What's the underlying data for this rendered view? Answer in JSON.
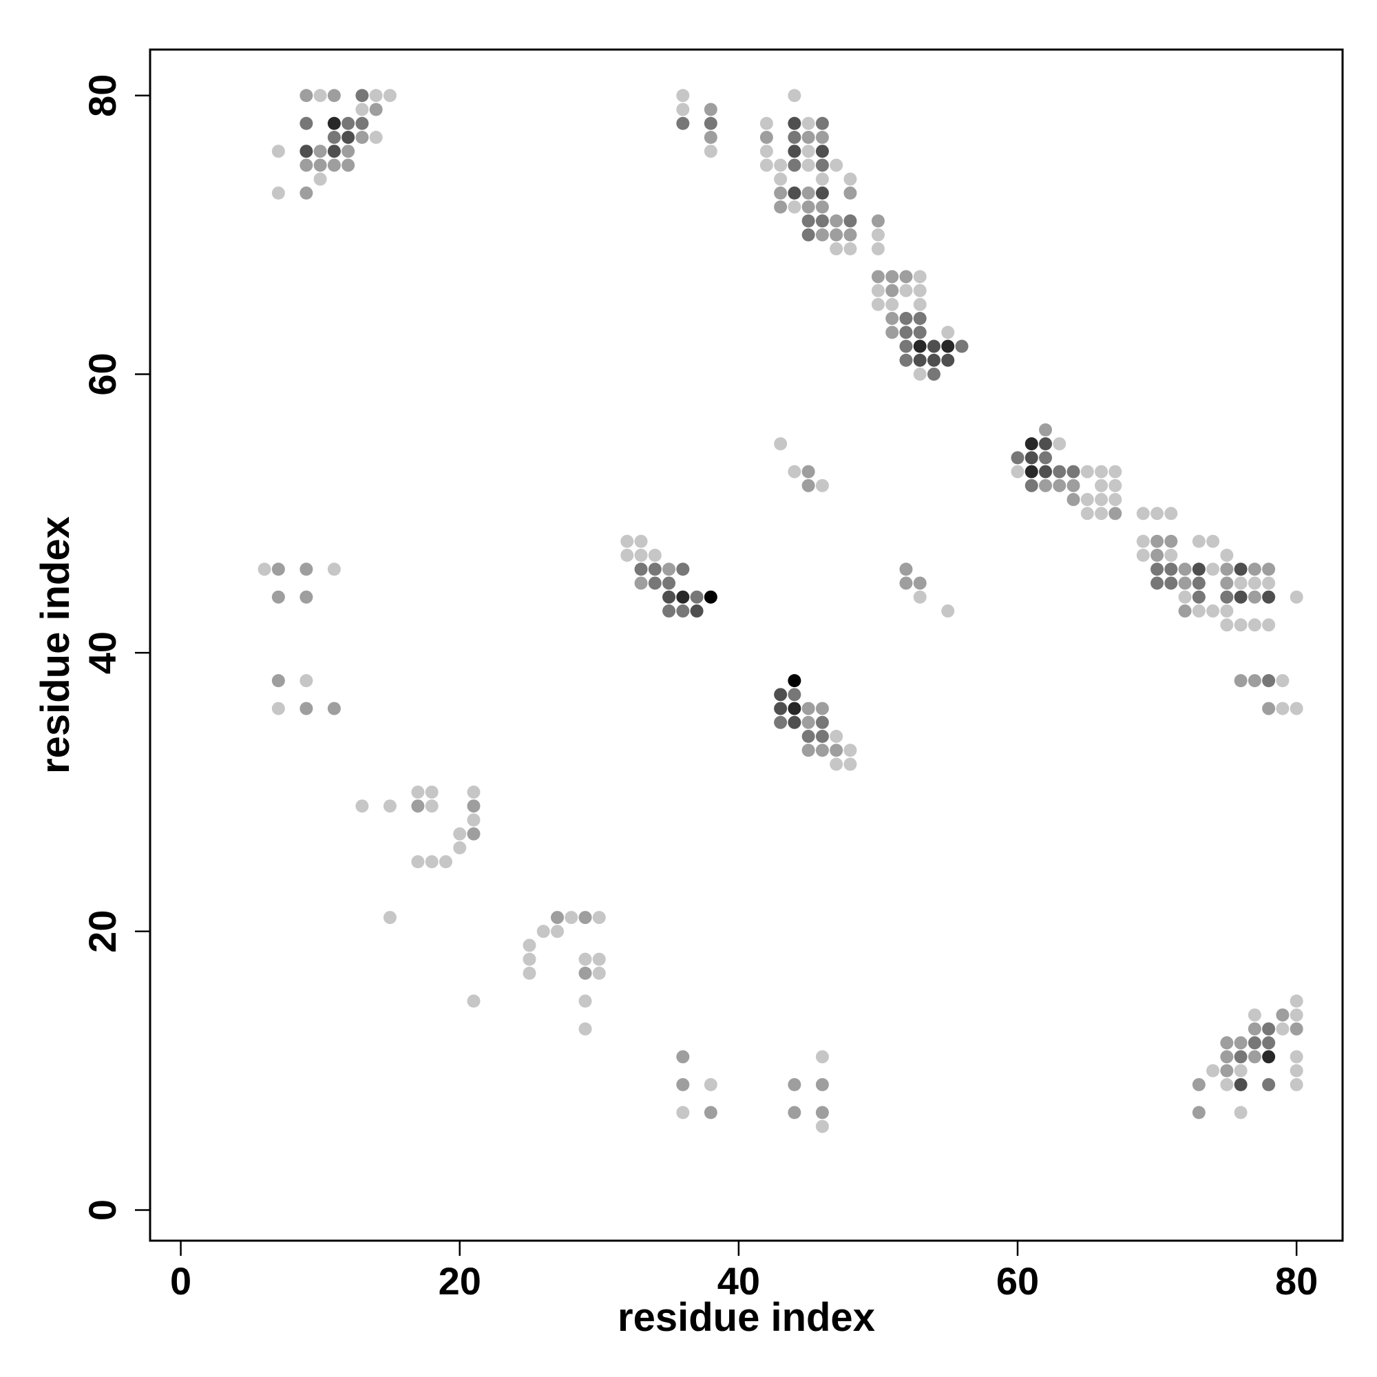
{
  "chart_data": {
    "type": "scatter",
    "title": "",
    "xlabel": "residue index",
    "ylabel": "residue index",
    "xlim": [
      -2.2,
      83.3
    ],
    "ylim": [
      -2.2,
      83.3
    ],
    "xticks": [
      0,
      20,
      40,
      60,
      80
    ],
    "yticks": [
      0,
      20,
      40,
      60,
      80
    ],
    "grid": false,
    "legend": "none",
    "marker_color_scale": [
      "#c6c6c6",
      "#000000"
    ],
    "points": [
      [
        7,
        76,
        1
      ],
      [
        7,
        73,
        1
      ],
      [
        9,
        80,
        2
      ],
      [
        9,
        78,
        3
      ],
      [
        9,
        76,
        4
      ],
      [
        9,
        75,
        2
      ],
      [
        9,
        73,
        2
      ],
      [
        10,
        80,
        1
      ],
      [
        10,
        76,
        2
      ],
      [
        10,
        75,
        2
      ],
      [
        10,
        74,
        1
      ],
      [
        11,
        80,
        2
      ],
      [
        11,
        78,
        5
      ],
      [
        11,
        77,
        3
      ],
      [
        11,
        76,
        4
      ],
      [
        11,
        75,
        2
      ],
      [
        12,
        78,
        3
      ],
      [
        12,
        77,
        4
      ],
      [
        12,
        76,
        2
      ],
      [
        12,
        75,
        2
      ],
      [
        13,
        80,
        3
      ],
      [
        13,
        79,
        1
      ],
      [
        13,
        78,
        3
      ],
      [
        13,
        77,
        2
      ],
      [
        14,
        80,
        1
      ],
      [
        14,
        79,
        2
      ],
      [
        14,
        77,
        1
      ],
      [
        15,
        80,
        1
      ],
      [
        36,
        80,
        1
      ],
      [
        36,
        79,
        1
      ],
      [
        36,
        78,
        3
      ],
      [
        38,
        79,
        2
      ],
      [
        38,
        78,
        3
      ],
      [
        38,
        77,
        2
      ],
      [
        38,
        76,
        1
      ],
      [
        44,
        80,
        1
      ],
      [
        42,
        78,
        1
      ],
      [
        42,
        77,
        2
      ],
      [
        42,
        76,
        1
      ],
      [
        42,
        75,
        1
      ],
      [
        43,
        75,
        1
      ],
      [
        43,
        74,
        1
      ],
      [
        43,
        73,
        2
      ],
      [
        43,
        72,
        2
      ],
      [
        44,
        78,
        4
      ],
      [
        44,
        77,
        3
      ],
      [
        44,
        76,
        4
      ],
      [
        44,
        75,
        3
      ],
      [
        44,
        73,
        4
      ],
      [
        44,
        72,
        1
      ],
      [
        45,
        78,
        1
      ],
      [
        45,
        77,
        2
      ],
      [
        45,
        76,
        1
      ],
      [
        45,
        75,
        1
      ],
      [
        45,
        73,
        2
      ],
      [
        45,
        72,
        2
      ],
      [
        45,
        71,
        3
      ],
      [
        45,
        70,
        3
      ],
      [
        46,
        78,
        3
      ],
      [
        46,
        77,
        2
      ],
      [
        46,
        76,
        4
      ],
      [
        46,
        75,
        3
      ],
      [
        46,
        74,
        1
      ],
      [
        46,
        73,
        4
      ],
      [
        46,
        72,
        2
      ],
      [
        46,
        71,
        3
      ],
      [
        46,
        70,
        2
      ],
      [
        47,
        75,
        1
      ],
      [
        47,
        71,
        2
      ],
      [
        47,
        70,
        2
      ],
      [
        47,
        69,
        1
      ],
      [
        48,
        74,
        1
      ],
      [
        48,
        73,
        2
      ],
      [
        48,
        71,
        3
      ],
      [
        48,
        70,
        2
      ],
      [
        48,
        69,
        1
      ],
      [
        50,
        71,
        2
      ],
      [
        50,
        70,
        1
      ],
      [
        50,
        69,
        1
      ],
      [
        50,
        67,
        2
      ],
      [
        50,
        66,
        1
      ],
      [
        50,
        65,
        1
      ],
      [
        51,
        67,
        2
      ],
      [
        51,
        66,
        2
      ],
      [
        51,
        65,
        1
      ],
      [
        51,
        64,
        2
      ],
      [
        51,
        63,
        2
      ],
      [
        52,
        67,
        2
      ],
      [
        52,
        66,
        1
      ],
      [
        52,
        64,
        3
      ],
      [
        52,
        63,
        3
      ],
      [
        52,
        62,
        3
      ],
      [
        52,
        61,
        3
      ],
      [
        53,
        67,
        1
      ],
      [
        53,
        66,
        1
      ],
      [
        53,
        65,
        1
      ],
      [
        53,
        64,
        3
      ],
      [
        53,
        63,
        3
      ],
      [
        53,
        62,
        5
      ],
      [
        53,
        61,
        4
      ],
      [
        53,
        60,
        1
      ],
      [
        54,
        62,
        4
      ],
      [
        54,
        61,
        4
      ],
      [
        54,
        60,
        3
      ],
      [
        55,
        63,
        1
      ],
      [
        55,
        62,
        5
      ],
      [
        55,
        61,
        4
      ],
      [
        56,
        62,
        3
      ],
      [
        43,
        55,
        1
      ],
      [
        44,
        53,
        1
      ],
      [
        45,
        53,
        2
      ],
      [
        45,
        52,
        2
      ],
      [
        46,
        52,
        1
      ],
      [
        60,
        54,
        3
      ],
      [
        60,
        53,
        1
      ],
      [
        61,
        55,
        5
      ],
      [
        61,
        54,
        4
      ],
      [
        61,
        53,
        5
      ],
      [
        61,
        52,
        3
      ],
      [
        62,
        56,
        2
      ],
      [
        62,
        55,
        4
      ],
      [
        62,
        54,
        3
      ],
      [
        62,
        53,
        4
      ],
      [
        62,
        52,
        2
      ],
      [
        63,
        55,
        1
      ],
      [
        63,
        53,
        3
      ],
      [
        63,
        52,
        2
      ],
      [
        64,
        53,
        3
      ],
      [
        64,
        52,
        2
      ],
      [
        64,
        51,
        2
      ],
      [
        65,
        53,
        1
      ],
      [
        65,
        51,
        1
      ],
      [
        65,
        50,
        1
      ],
      [
        66,
        53,
        1
      ],
      [
        66,
        52,
        1
      ],
      [
        66,
        51,
        1
      ],
      [
        66,
        50,
        1
      ],
      [
        67,
        53,
        1
      ],
      [
        67,
        52,
        1
      ],
      [
        67,
        51,
        1
      ],
      [
        67,
        50,
        2
      ],
      [
        69,
        50,
        1
      ],
      [
        70,
        50,
        1
      ],
      [
        71,
        50,
        1
      ],
      [
        69,
        48,
        1
      ],
      [
        69,
        47,
        1
      ],
      [
        70,
        48,
        2
      ],
      [
        70,
        47,
        2
      ],
      [
        70,
        46,
        3
      ],
      [
        70,
        45,
        3
      ],
      [
        71,
        48,
        2
      ],
      [
        71,
        47,
        1
      ],
      [
        71,
        46,
        3
      ],
      [
        71,
        45,
        3
      ],
      [
        72,
        46,
        2
      ],
      [
        72,
        45,
        2
      ],
      [
        72,
        44,
        1
      ],
      [
        72,
        43,
        2
      ],
      [
        73,
        48,
        1
      ],
      [
        73,
        46,
        4
      ],
      [
        73,
        45,
        3
      ],
      [
        73,
        44,
        3
      ],
      [
        73,
        43,
        1
      ],
      [
        74,
        48,
        1
      ],
      [
        74,
        46,
        1
      ],
      [
        74,
        43,
        1
      ],
      [
        75,
        47,
        1
      ],
      [
        75,
        46,
        2
      ],
      [
        75,
        45,
        2
      ],
      [
        75,
        44,
        3
      ],
      [
        75,
        43,
        1
      ],
      [
        75,
        42,
        1
      ],
      [
        76,
        46,
        4
      ],
      [
        76,
        45,
        1
      ],
      [
        76,
        44,
        4
      ],
      [
        76,
        42,
        1
      ],
      [
        77,
        46,
        2
      ],
      [
        77,
        45,
        1
      ],
      [
        77,
        44,
        2
      ],
      [
        77,
        42,
        1
      ],
      [
        78,
        46,
        2
      ],
      [
        78,
        45,
        1
      ],
      [
        78,
        44,
        4
      ],
      [
        78,
        42,
        1
      ],
      [
        80,
        44,
        1
      ],
      [
        76,
        38,
        2
      ],
      [
        77,
        38,
        2
      ],
      [
        78,
        38,
        3
      ],
      [
        79,
        38,
        1
      ],
      [
        78,
        36,
        2
      ],
      [
        79,
        36,
        1
      ],
      [
        80,
        36,
        1
      ],
      [
        6,
        46,
        1
      ],
      [
        7,
        46,
        2
      ],
      [
        7,
        44,
        2
      ],
      [
        9,
        46,
        2
      ],
      [
        9,
        44,
        2
      ],
      [
        11,
        46,
        1
      ],
      [
        7,
        38,
        2
      ],
      [
        7,
        36,
        1
      ],
      [
        9,
        38,
        1
      ],
      [
        9,
        36,
        2
      ],
      [
        11,
        36,
        2
      ],
      [
        32,
        48,
        1
      ],
      [
        32,
        47,
        1
      ],
      [
        33,
        48,
        1
      ],
      [
        33,
        47,
        1
      ],
      [
        33,
        46,
        3
      ],
      [
        33,
        45,
        2
      ],
      [
        34,
        47,
        1
      ],
      [
        34,
        46,
        3
      ],
      [
        34,
        45,
        3
      ],
      [
        35,
        46,
        2
      ],
      [
        35,
        45,
        3
      ],
      [
        35,
        44,
        4
      ],
      [
        35,
        43,
        3
      ],
      [
        36,
        46,
        3
      ],
      [
        36,
        44,
        5
      ],
      [
        36,
        43,
        3
      ],
      [
        37,
        44,
        3
      ],
      [
        37,
        43,
        4
      ],
      [
        38,
        44,
        6
      ],
      [
        52,
        46,
        2
      ],
      [
        52,
        45,
        2
      ],
      [
        53,
        45,
        2
      ],
      [
        53,
        44,
        1
      ],
      [
        55,
        43,
        1
      ],
      [
        43,
        37,
        4
      ],
      [
        43,
        36,
        4
      ],
      [
        43,
        35,
        3
      ],
      [
        44,
        38,
        6
      ],
      [
        44,
        37,
        3
      ],
      [
        44,
        36,
        5
      ],
      [
        44,
        35,
        4
      ],
      [
        45,
        36,
        2
      ],
      [
        45,
        35,
        2
      ],
      [
        45,
        34,
        3
      ],
      [
        45,
        33,
        2
      ],
      [
        46,
        36,
        2
      ],
      [
        46,
        35,
        3
      ],
      [
        46,
        34,
        3
      ],
      [
        46,
        33,
        2
      ],
      [
        47,
        34,
        1
      ],
      [
        47,
        33,
        2
      ],
      [
        47,
        32,
        1
      ],
      [
        48,
        33,
        1
      ],
      [
        48,
        32,
        1
      ],
      [
        13,
        29,
        1
      ],
      [
        15,
        29,
        1
      ],
      [
        17,
        30,
        1
      ],
      [
        17,
        29,
        2
      ],
      [
        18,
        30,
        1
      ],
      [
        18,
        29,
        1
      ],
      [
        21,
        30,
        1
      ],
      [
        21,
        29,
        2
      ],
      [
        21,
        28,
        1
      ],
      [
        20,
        27,
        1
      ],
      [
        21,
        27,
        2
      ],
      [
        20,
        26,
        1
      ],
      [
        17,
        25,
        1
      ],
      [
        18,
        25,
        1
      ],
      [
        19,
        25,
        1
      ],
      [
        15,
        21,
        1
      ],
      [
        25,
        19,
        1
      ],
      [
        25,
        18,
        1
      ],
      [
        25,
        17,
        1
      ],
      [
        26,
        20,
        1
      ],
      [
        27,
        21,
        2
      ],
      [
        27,
        20,
        1
      ],
      [
        28,
        21,
        1
      ],
      [
        29,
        21,
        2
      ],
      [
        30,
        21,
        1
      ],
      [
        29,
        18,
        1
      ],
      [
        29,
        17,
        2
      ],
      [
        30,
        18,
        1
      ],
      [
        30,
        17,
        1
      ],
      [
        29,
        15,
        1
      ],
      [
        29,
        13,
        1
      ],
      [
        21,
        15,
        1
      ],
      [
        36,
        11,
        2
      ],
      [
        36,
        9,
        2
      ],
      [
        36,
        7,
        1
      ],
      [
        38,
        9,
        1
      ],
      [
        38,
        7,
        2
      ],
      [
        44,
        9,
        2
      ],
      [
        44,
        7,
        2
      ],
      [
        46,
        11,
        1
      ],
      [
        46,
        9,
        2
      ],
      [
        46,
        7,
        2
      ],
      [
        46,
        6,
        1
      ],
      [
        73,
        9,
        2
      ],
      [
        73,
        7,
        2
      ],
      [
        74,
        10,
        1
      ],
      [
        75,
        12,
        2
      ],
      [
        75,
        11,
        2
      ],
      [
        75,
        10,
        2
      ],
      [
        75,
        9,
        1
      ],
      [
        76,
        12,
        2
      ],
      [
        76,
        11,
        3
      ],
      [
        76,
        10,
        1
      ],
      [
        76,
        9,
        4
      ],
      [
        76,
        7,
        1
      ],
      [
        77,
        14,
        1
      ],
      [
        77,
        13,
        2
      ],
      [
        77,
        12,
        3
      ],
      [
        77,
        11,
        2
      ],
      [
        78,
        13,
        3
      ],
      [
        78,
        12,
        3
      ],
      [
        78,
        11,
        5
      ],
      [
        78,
        9,
        3
      ],
      [
        79,
        14,
        2
      ],
      [
        79,
        13,
        1
      ],
      [
        80,
        15,
        1
      ],
      [
        80,
        14,
        1
      ],
      [
        80,
        13,
        2
      ],
      [
        80,
        11,
        1
      ],
      [
        80,
        10,
        1
      ],
      [
        80,
        9,
        1
      ]
    ]
  }
}
